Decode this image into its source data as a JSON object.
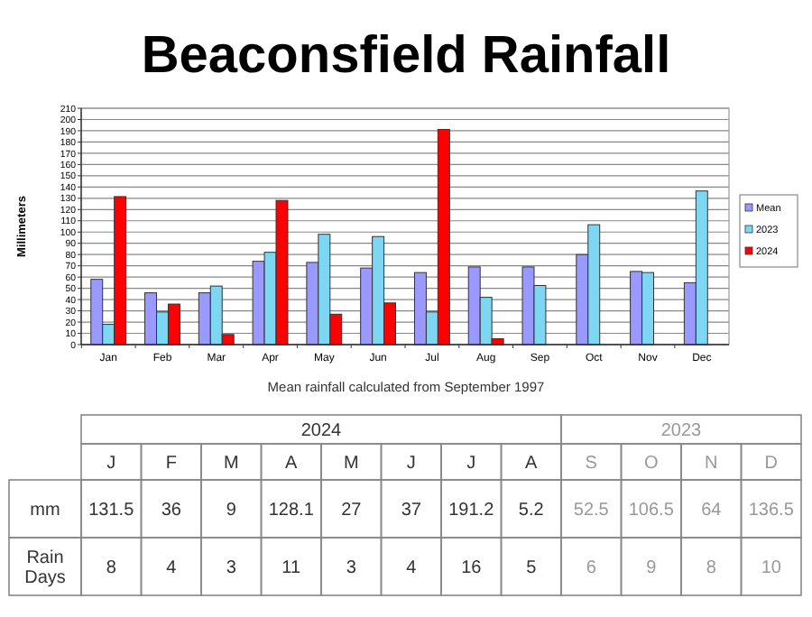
{
  "chart_data": [
    {
      "type": "bar",
      "title": "Beaconsfield Rainfall",
      "ylabel": "Millimeters",
      "annotations": [
        "Mean rainfall calculated from September 1997"
      ],
      "categories": [
        "Jan",
        "Feb",
        "Mar",
        "Apr",
        "May",
        "Jun",
        "Jul",
        "Aug",
        "Sep",
        "Oct",
        "Nov",
        "Dec"
      ],
      "series": [
        {
          "name": "Mean",
          "color": "#9999ff",
          "values": [
            58,
            46,
            46,
            74,
            73,
            68,
            64,
            69,
            69,
            80,
            65,
            55
          ]
        },
        {
          "name": "2023",
          "color": "#7dd6f2",
          "values": [
            18,
            29,
            52,
            82,
            98,
            96,
            29,
            42,
            52.5,
            106.5,
            64,
            136.5
          ]
        },
        {
          "name": "2024",
          "color": "#ff0000",
          "values": [
            131.5,
            36,
            9,
            128.1,
            27,
            37,
            191.2,
            5.2,
            null,
            null,
            null,
            null
          ]
        }
      ],
      "ylim": [
        0,
        210
      ],
      "yticks": [
        0,
        10,
        20,
        30,
        40,
        50,
        60,
        70,
        80,
        90,
        100,
        110,
        120,
        130,
        140,
        150,
        160,
        170,
        180,
        190,
        200,
        210
      ],
      "grid": "y",
      "legend": "right"
    },
    {
      "type": "other",
      "categories": [
        "J",
        "F",
        "M",
        "A",
        "M",
        "J",
        "J",
        "A",
        "S",
        "O",
        "N",
        "D"
      ],
      "annotations": [
        "2024",
        "2023"
      ],
      "colors": [
        "#333333",
        "#333333",
        "#333333",
        "#333333",
        "#333333",
        "#333333",
        "#333333",
        "#333333",
        "#999999",
        "#999999",
        "#999999",
        "#999999"
      ],
      "data_labels": true,
      "series": [
        {
          "name": "mm",
          "values": [
            131.5,
            36,
            9,
            128.1,
            27,
            37,
            191.2,
            5.2,
            52.5,
            106.5,
            64,
            136.5
          ]
        },
        {
          "name": "Rain Days",
          "values": [
            8,
            4,
            3,
            11,
            3,
            4,
            16,
            5,
            6,
            9,
            8,
            10
          ]
        }
      ]
    }
  ]
}
